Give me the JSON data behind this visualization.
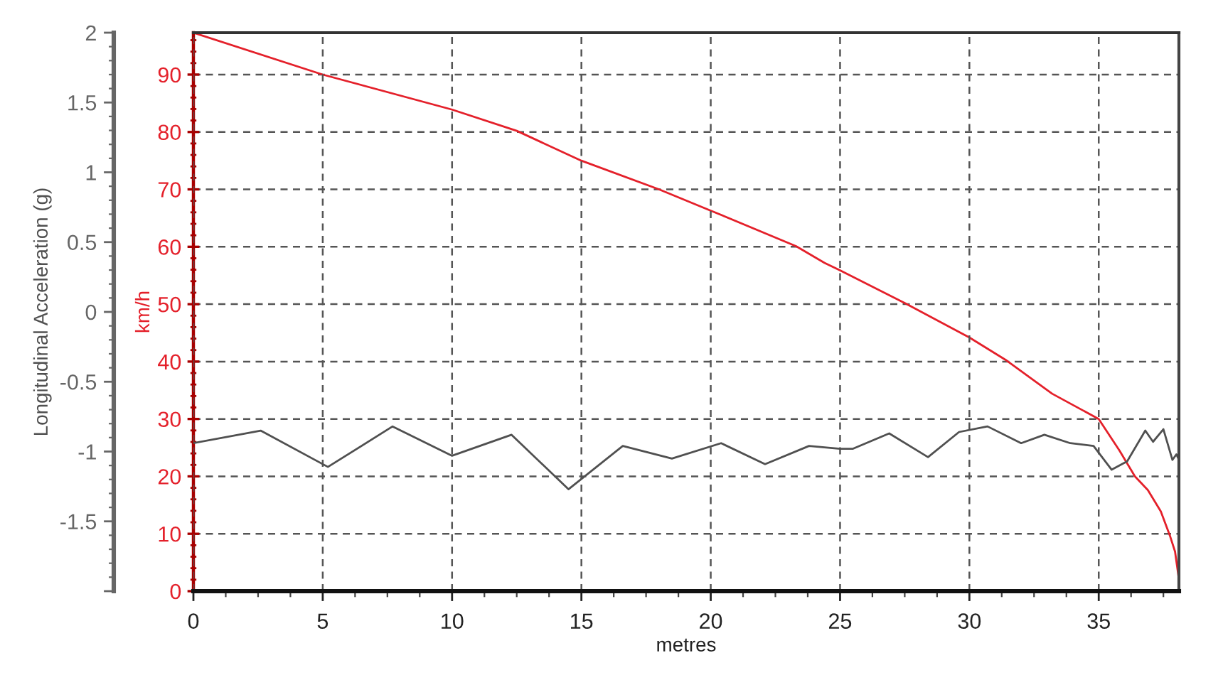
{
  "chart_data": {
    "type": "line",
    "xlabel": "metres",
    "ylabel": "Longitudinal Acceleration (g)",
    "y2label": "km/h",
    "xlim": [
      0,
      38.1
    ],
    "xticks": [
      0,
      5,
      10,
      15,
      20,
      25,
      30,
      35
    ],
    "ylim": [
      -2,
      2
    ],
    "yticks": [
      {
        "value": -2,
        "label": null
      },
      -1.5,
      -1,
      -0.5,
      0,
      0.5,
      1,
      1.5,
      2
    ],
    "y2lim": [
      0,
      97.3
    ],
    "y2ticks": [
      0,
      10,
      20,
      30,
      40,
      50,
      60,
      70,
      80,
      90
    ],
    "grid": true,
    "series": [
      {
        "color": "#505050",
        "axis": "y",
        "x": [
          0,
          2.6,
          5.2,
          7.7,
          10,
          12.3,
          14.5,
          16.6,
          18.5,
          20.4,
          22.1,
          23.8,
          25,
          25.5,
          26.9,
          28.4,
          29.6,
          30.7,
          32,
          32.9,
          33.9,
          34.8,
          35.5,
          36.1,
          36.8,
          37.1,
          37.5,
          37.85,
          38.0,
          38.08
        ],
        "values": [
          -0.94,
          -0.85,
          -1.11,
          -0.82,
          -1.03,
          -0.88,
          -1.27,
          -0.96,
          -1.05,
          -0.94,
          -1.09,
          -0.96,
          -0.98,
          -0.98,
          -0.87,
          -1.04,
          -0.86,
          -0.82,
          -0.94,
          -0.88,
          -0.94,
          -0.96,
          -1.13,
          -1.07,
          -0.85,
          -0.93,
          -0.84,
          -1.06,
          -1.02,
          -1.05
        ]
      },
      {
        "color": "#e4202a",
        "axis": "y2",
        "x": [
          0,
          5,
          10,
          12.5,
          15,
          18,
          20,
          23.3,
          24.4,
          25,
          27.5,
          30,
          31.4,
          33.2,
          35,
          35.8,
          36.4,
          36.9,
          37.4,
          37.75,
          37.95,
          38.08
        ],
        "values": [
          97.3,
          90,
          83.9,
          80.2,
          75,
          70,
          66.3,
          60.1,
          57.2,
          55.9,
          50.2,
          44.2,
          40.3,
          34.4,
          30,
          24.5,
          20,
          17.6,
          13.9,
          9.7,
          6.9,
          2.7
        ]
      }
    ]
  }
}
